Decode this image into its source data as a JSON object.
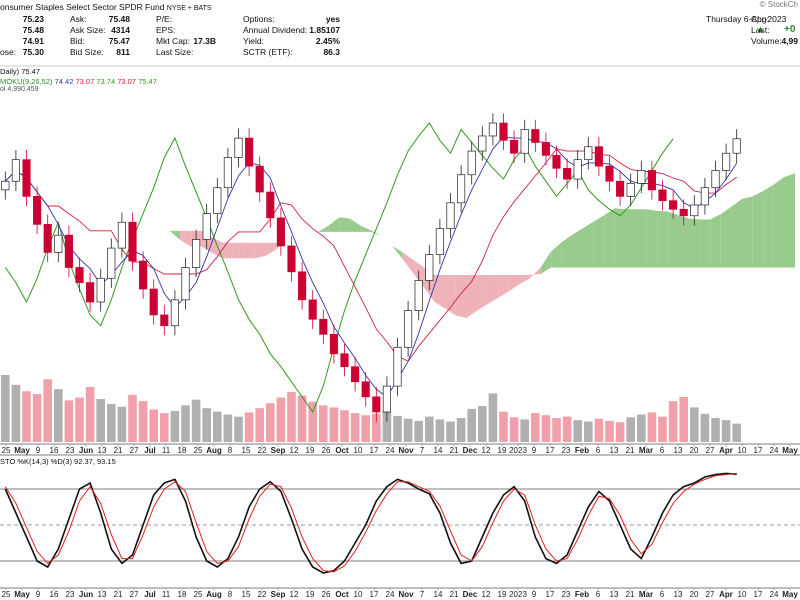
{
  "header": {
    "title": "onsumer Staples Select Sector SPDR Fund",
    "exchange": "NYSE + BATS",
    "watermark": "© StockCh",
    "date": "Thursday  6-Apr-2023",
    "change": "+0",
    "ohlc": [
      "75.23",
      "75.48",
      "74.91",
      "75.30"
    ],
    "ohlc_last_label": "ose:",
    "col2": [
      {
        "label": "Ask:",
        "value": "75.48"
      },
      {
        "label": "Ask Size:",
        "value": "4314"
      },
      {
        "label": "Bid:",
        "value": "75.47"
      },
      {
        "label": "Bid Size:",
        "value": "811"
      }
    ],
    "col3": [
      {
        "label": "P/E:",
        "value": ""
      },
      {
        "label": "EPS:",
        "value": ""
      },
      {
        "label": "Mkt Cap:",
        "value": "17.3B"
      },
      {
        "label": "Last Size:",
        "value": ""
      }
    ],
    "col4": [
      {
        "label": "Options:",
        "value": "yes"
      },
      {
        "label": "Annual Dividend:",
        "value": "1.85107"
      },
      {
        "label": "Yield:",
        "value": "2.45%"
      },
      {
        "label": "SCTR (ETF):",
        "value": "86.3"
      }
    ],
    "col5": [
      {
        "label": "Chg:",
        "value": ""
      },
      {
        "label": "Last:",
        "value": ""
      },
      {
        "label": "Volume:",
        "value": "4,99"
      }
    ]
  },
  "indicators": {
    "price_line": "Daily) 75.47",
    "ichimoku_label": "MOKU(9,26,52)",
    "ichimoku_values": [
      "74.42",
      "73.07",
      "73.74",
      "73.07",
      "75.47"
    ],
    "volume_label": "ol 4,990,459",
    "sto_label": "STO %K(14,3) %D(3) 92.37, 93.15"
  },
  "colors": {
    "up": "#222222",
    "down": "#cc0033",
    "tenkan": "#3333aa",
    "kijun": "#cc2244",
    "chikou": "#339922",
    "cloud_bull": "#77bb66",
    "cloud_bear": "#e898a0",
    "volume_up": "#b0b0b0",
    "volume_down": "#f0a0aa",
    "stoch_k": "#111111",
    "stoch_d": "#dd2222"
  },
  "x_axis": {
    "ticks": [
      "25",
      "May",
      "9",
      "16",
      "23",
      "Jun",
      "13",
      "21",
      "27",
      "Jul",
      "11",
      "18",
      "25",
      "Aug",
      "8",
      "15",
      "22",
      "Sep",
      "12",
      "19",
      "26",
      "Oct",
      "10",
      "17",
      "24",
      "Nov",
      "7",
      "14",
      "21",
      "Dec",
      "12",
      "19",
      "2023",
      "9",
      "17",
      "23",
      "Feb",
      "6",
      "13",
      "21",
      "Mar",
      "6",
      "13",
      "20",
      "27",
      "Apr",
      "10",
      "17",
      "24",
      "May"
    ]
  },
  "chart_data": [
    {
      "type": "candlestick",
      "title": "Consumer Staples Select Sector SPDR Fund (Daily) with Ichimoku",
      "last_close": 75.47,
      "ichimoku": {
        "tenkan": 74.42,
        "kijun": 73.07,
        "span_a": 73.74,
        "span_b": 73.07,
        "chikou": 75.47
      },
      "price": [
        73.5,
        74.5,
        72.8,
        71.5,
        70.2,
        71.0,
        69.5,
        68.8,
        67.9,
        69.0,
        70.4,
        71.6,
        69.8,
        68.5,
        67.3,
        66.8,
        68.0,
        69.5,
        70.8,
        72.0,
        73.2,
        74.6,
        75.5,
        74.2,
        73.0,
        71.8,
        70.5,
        69.3,
        68.0,
        67.1,
        66.4,
        65.5,
        64.9,
        64.2,
        63.5,
        62.8,
        64.0,
        65.8,
        67.5,
        68.9,
        70.1,
        71.3,
        72.5,
        73.8,
        74.9,
        75.6,
        76.2,
        75.4,
        74.8,
        75.9,
        75.3,
        74.7,
        74.1,
        73.6,
        74.5,
        75.1,
        74.2,
        73.5,
        72.8,
        73.4,
        74.0,
        73.1,
        72.6,
        72.2,
        71.9,
        72.4,
        73.2,
        74.0,
        74.8,
        75.47
      ],
      "volume": [
        9.5,
        8.1,
        7.2,
        6.8,
        8.9,
        7.5,
        5.9,
        6.3,
        7.8,
        6.1,
        5.4,
        5.0,
        6.7,
        5.8,
        4.6,
        4.1,
        4.4,
        5.2,
        6.0,
        4.8,
        4.3,
        3.9,
        3.6,
        4.2,
        4.8,
        5.5,
        6.3,
        7.1,
        6.6,
        5.7,
        5.2,
        4.9,
        4.5,
        4.1,
        3.8,
        4.0,
        4.4,
        3.7,
        3.3,
        3.0,
        3.6,
        3.2,
        2.9,
        3.4,
        4.7,
        5.1,
        6.9,
        4.3,
        3.5,
        3.2,
        4.1,
        3.8,
        3.4,
        3.6,
        3.1,
        2.9,
        3.3,
        3.0,
        2.8,
        3.5,
        3.9,
        4.2,
        3.6,
        5.8,
        6.4,
        4.9,
        4.0,
        3.4,
        3.1,
        2.6
      ]
    },
    {
      "type": "line",
      "title": "STO %K(14,3) %D(3)",
      "ylim": [
        0,
        100
      ],
      "series": [
        {
          "name": "%K",
          "values": [
            80,
            60,
            40,
            20,
            15,
            30,
            55,
            80,
            85,
            60,
            30,
            18,
            25,
            50,
            75,
            85,
            88,
            70,
            40,
            20,
            15,
            22,
            40,
            65,
            80,
            86,
            78,
            55,
            30,
            15,
            10,
            12,
            20,
            35,
            50,
            70,
            82,
            88,
            85,
            80,
            76,
            60,
            35,
            18,
            20,
            40,
            60,
            75,
            82,
            70,
            40,
            22,
            18,
            25,
            45,
            65,
            78,
            70,
            50,
            30,
            22,
            40,
            60,
            75,
            82,
            85,
            90,
            92,
            93,
            92.37
          ]
        },
        {
          "name": "%D",
          "values": [
            82,
            68,
            48,
            28,
            18,
            25,
            45,
            70,
            82,
            68,
            42,
            22,
            22,
            42,
            65,
            80,
            86,
            78,
            52,
            28,
            18,
            20,
            32,
            55,
            74,
            84,
            82,
            64,
            40,
            22,
            12,
            11,
            16,
            28,
            44,
            62,
            76,
            86,
            86,
            82,
            78,
            66,
            45,
            25,
            20,
            32,
            52,
            70,
            80,
            75,
            50,
            30,
            20,
            22,
            38,
            58,
            74,
            72,
            58,
            38,
            26,
            34,
            52,
            68,
            78,
            84,
            88,
            91,
            92,
            93.15
          ]
        }
      ]
    }
  ]
}
